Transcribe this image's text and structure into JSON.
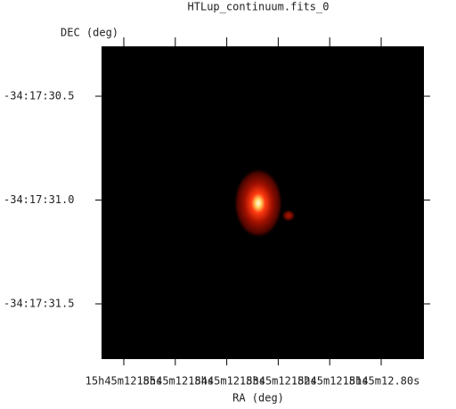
{
  "title": "HTLup_continuum.fits_0",
  "y_axis": {
    "label": "DEC (deg)",
    "ticks": [
      "-34:17:30.5",
      "-34:17:31.0",
      "-34:17:31.5"
    ]
  },
  "x_axis": {
    "label": "RA (deg)",
    "ticks": [
      "15h45m12.85s",
      "15h45m12.84s",
      "15h45m12.83s",
      "15h45m12.82s",
      "15h45m12.81s",
      "15h45m12.80s"
    ]
  }
}
